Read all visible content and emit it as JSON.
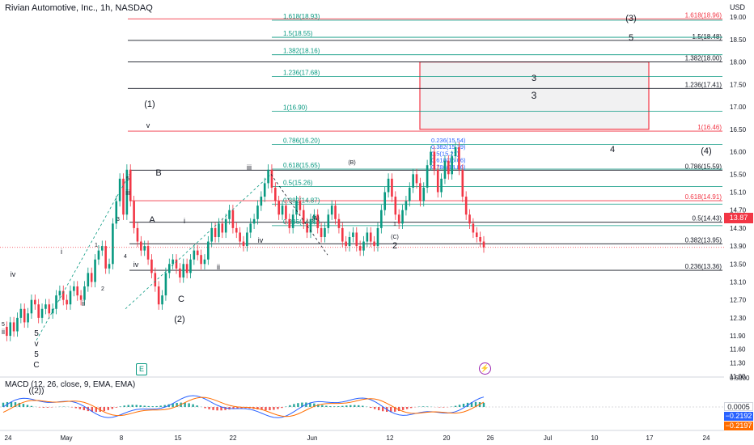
{
  "header": {
    "title": "Rivian Automotive, Inc., 1h, NASDAQ",
    "currency": "USD",
    "last_price": "13.87",
    "event_earnings_icon": "E",
    "event_split_icon": "⚡"
  },
  "macd": {
    "title": "MACD (12, 26, close, 9, EMA, EMA)",
    "hist_value": "0.0005",
    "macd_value": "−0.2192",
    "signal_value": "−0.2197",
    "axis_label": "0.5000",
    "colors": {
      "macd": "#2962ff",
      "signal": "#ff6d00",
      "hist_up": "#26a69a",
      "hist_down": "#ef5350"
    }
  },
  "chart_data": {
    "type": "candlestick",
    "title": "Rivian Automotive, Inc., 1h, NASDAQ",
    "ylim": [
      11.0,
      19.2
    ],
    "y_ticks": [
      "19.00",
      "18.50",
      "18.00",
      "17.50",
      "17.00",
      "16.50",
      "16.00",
      "15.50",
      "15.10",
      "14.70",
      "14.30",
      "13.90",
      "13.50",
      "13.10",
      "12.70",
      "12.30",
      "11.90",
      "11.60",
      "11.30",
      "11.00"
    ],
    "x_ticks": [
      "24",
      "May",
      "8",
      "15",
      "22",
      "Jun",
      "12",
      "20",
      "26",
      "Jul",
      "10",
      "17",
      "24"
    ],
    "price_path": [
      12.1,
      11.9,
      12.2,
      12.0,
      12.3,
      12.5,
      12.2,
      12.4,
      12.7,
      12.6,
      12.3,
      12.5,
      12.6,
      12.4,
      12.5,
      12.8,
      12.9,
      12.7,
      12.6,
      12.9,
      13.0,
      12.8,
      12.7,
      13.0,
      13.3,
      13.1,
      13.6,
      13.8,
      13.9,
      13.4,
      13.5,
      14.4,
      14.9,
      15.4,
      14.6,
      15.6,
      14.9,
      14.3,
      14.0,
      13.8,
      13.9,
      13.6,
      13.3,
      13.0,
      12.6,
      12.8,
      13.3,
      13.5,
      13.6,
      13.4,
      13.2,
      13.5,
      13.3,
      13.6,
      13.8,
      13.7,
      13.5,
      13.6,
      14.0,
      14.3,
      14.1,
      14.4,
      14.2,
      14.5,
      14.7,
      14.3,
      14.2,
      14.0,
      13.9,
      14.2,
      14.4,
      14.5,
      14.8,
      15.0,
      15.3,
      15.6,
      15.2,
      14.9,
      14.6,
      14.8,
      14.5,
      14.3,
      14.6,
      14.9,
      14.7,
      14.4,
      14.2,
      14.5,
      14.6,
      14.3,
      14.1,
      14.3,
      14.6,
      14.8,
      14.5,
      14.3,
      14.0,
      13.9,
      14.1,
      14.2,
      13.9,
      13.8,
      14.0,
      14.2,
      14.0,
      13.9,
      14.3,
      14.7,
      15.1,
      15.4,
      15.0,
      14.6,
      14.4,
      14.7,
      14.9,
      15.2,
      15.5,
      15.3,
      14.9,
      15.2,
      15.7,
      16.0,
      15.6,
      15.1,
      15.4,
      15.8,
      15.5,
      15.9,
      16.1,
      15.6,
      15.0,
      14.6,
      14.4,
      14.2,
      14.1,
      14.0,
      13.87
    ],
    "fib_levels": [
      {
        "label": "1.618(18.93)",
        "value": 18.93
      },
      {
        "label": "1.5(18.55)",
        "value": 18.55
      },
      {
        "label": "1.382(18.16)",
        "value": 18.16
      },
      {
        "label": "1.236(17.68)",
        "value": 17.68
      },
      {
        "label": "1(16.90)",
        "value": 16.9
      },
      {
        "label": "0.786(16.20)",
        "value": 16.2
      },
      {
        "label": "0.618(15.65)",
        "value": 15.65
      },
      {
        "label": "0.5(15.26)",
        "value": 15.26
      },
      {
        "label": "0.382(14.87)",
        "value": 14.87
      },
      {
        "label": "0.236(14.39)",
        "value": 14.39
      }
    ],
    "right_levels": [
      {
        "label": "1.618(18.96)",
        "value": 18.96
      },
      {
        "label": "1.5(18.48)",
        "value": 18.48
      },
      {
        "label": "1.382(18.00)",
        "value": 18.0
      },
      {
        "label": "1.236(17.41)",
        "value": 17.41
      },
      {
        "label": "1(16.46)",
        "value": 16.46
      },
      {
        "label": "0.786(15.59)",
        "value": 15.59
      },
      {
        "label": "0.618(14.91)",
        "value": 14.91
      },
      {
        "label": "0.5(14.43)",
        "value": 14.43
      },
      {
        "label": "0.382(13.95)",
        "value": 13.95
      },
      {
        "label": "0.236(13.36)",
        "value": 13.36
      }
    ],
    "mini_fib_labels": [
      "0.236(15.54)",
      "0.382(15.39)",
      "0.5(15.21)",
      "0.618(15.06)",
      "0.786(14.86)"
    ],
    "target_box": {
      "label": "3",
      "y_top": 18.0,
      "y_bottom": 16.5
    },
    "wave_labels": [
      "(1)",
      "(2)",
      "(3)",
      "(4)",
      "((2))",
      "A",
      "B",
      "C",
      "1",
      "2",
      "3",
      "4",
      "5",
      "i",
      "ii",
      "iii",
      "iv",
      "v",
      "(A)",
      "(B)",
      "(C)"
    ]
  }
}
